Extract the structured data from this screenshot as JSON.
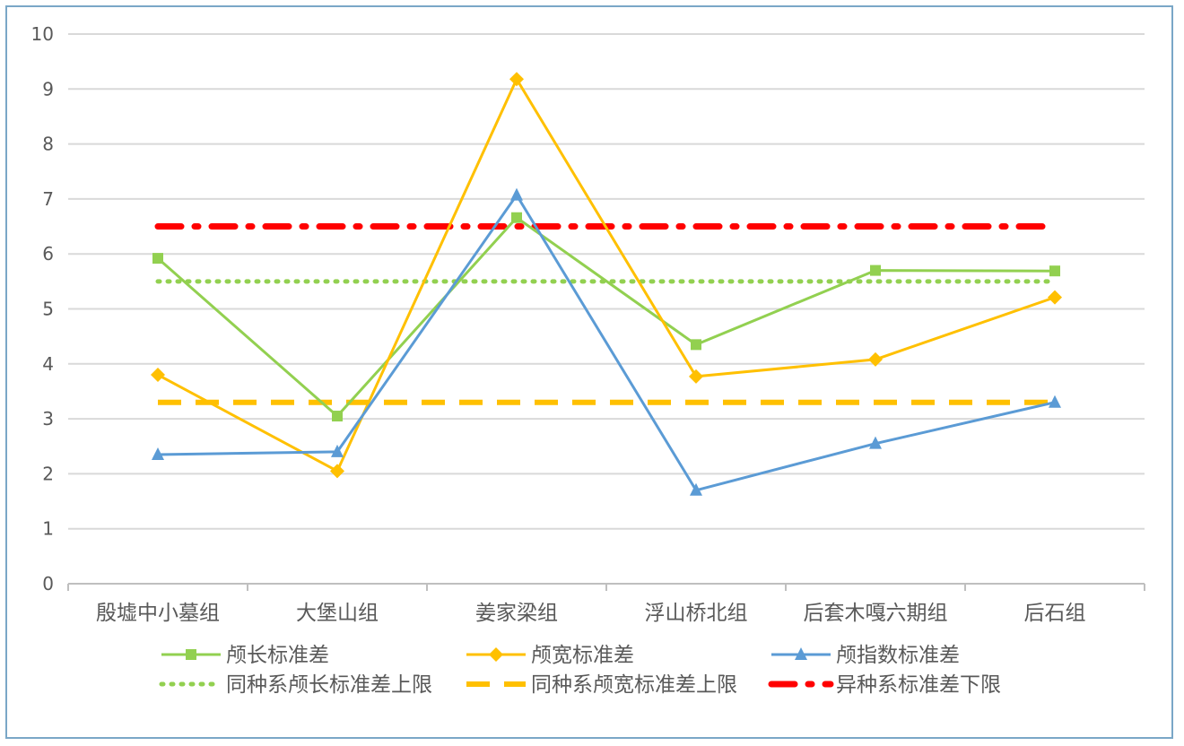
{
  "chart_data": {
    "type": "line",
    "categories": [
      "殷墟中小墓组",
      "大堡山组",
      "姜家梁组",
      "浮山桥北组",
      "后套木嘎六期组",
      "后石组"
    ],
    "ylim": [
      0,
      10
    ],
    "yticks": [
      0,
      1,
      2,
      3,
      4,
      5,
      6,
      7,
      8,
      9,
      10
    ],
    "grid": true,
    "legend_position": "bottom",
    "series": [
      {
        "name": "颅长标准差",
        "values": [
          5.92,
          3.05,
          6.66,
          4.35,
          5.7,
          5.69
        ],
        "color": "#92d050",
        "marker": "square",
        "style": "solid"
      },
      {
        "name": "颅宽标准差",
        "values": [
          3.8,
          2.05,
          9.18,
          3.77,
          4.08,
          5.21
        ],
        "color": "#ffc000",
        "marker": "diamond",
        "style": "solid"
      },
      {
        "name": "颅指数标准差",
        "values": [
          2.35,
          2.4,
          7.07,
          1.7,
          2.55,
          3.3
        ],
        "color": "#5b9bd5",
        "marker": "triangle",
        "style": "solid"
      }
    ],
    "reference_lines": [
      {
        "name": "同种系颅长标准差上限",
        "value": 5.5,
        "color": "#92d050",
        "style": "dotted"
      },
      {
        "name": "同种系颅宽标准差上限",
        "value": 3.3,
        "color": "#ffc000",
        "style": "dashed"
      },
      {
        "name": "异种系标准差下限",
        "value": 6.5,
        "color": "#ff0000",
        "style": "dashdot"
      }
    ]
  }
}
